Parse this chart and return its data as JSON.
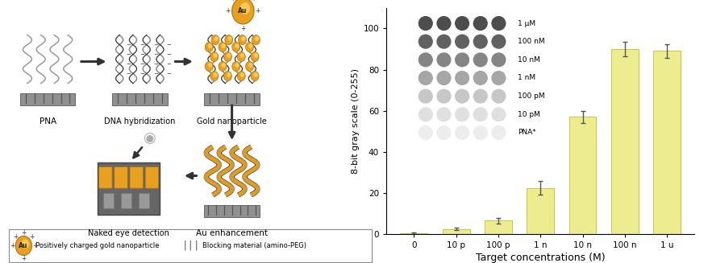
{
  "bar_values": [
    0.5,
    2.5,
    6.5,
    22.5,
    57,
    90,
    89
  ],
  "bar_errors": [
    0.3,
    0.5,
    1.5,
    3.5,
    3.0,
    3.5,
    3.5
  ],
  "bar_color": "#eded90",
  "bar_edgecolor": "#c8c840",
  "categories": [
    "0",
    "10 p",
    "100 p",
    "1 n",
    "10 n",
    "100 n",
    "1 u"
  ],
  "xlabel": "Target concentrations (M)",
  "ylabel": "8-bit gray scale (0-255)",
  "ylim": [
    0,
    110
  ],
  "yticks": [
    0,
    20,
    40,
    60,
    80,
    100
  ],
  "inset_labels": [
    "1 μM",
    "100 nM",
    "10 nM",
    "1 nM",
    "100 pM",
    "10 pM",
    "PNA*"
  ],
  "inset_dot_grays_rows": [
    [
      0.3,
      0.3,
      0.3,
      0.3,
      0.3
    ],
    [
      0.38,
      0.38,
      0.38,
      0.38,
      0.38
    ],
    [
      0.52,
      0.52,
      0.52,
      0.52,
      0.52
    ],
    [
      0.65,
      0.65,
      0.65,
      0.65,
      0.65
    ],
    [
      0.78,
      0.78,
      0.78,
      0.78,
      0.78
    ],
    [
      0.88,
      0.88,
      0.88,
      0.88,
      0.88
    ],
    [
      0.93,
      0.93,
      0.93,
      0.93,
      0.93
    ]
  ],
  "background_color": "#ffffff",
  "axis_fontsize": 8,
  "tick_fontsize": 7.5,
  "xlabel_fontsize": 9,
  "gold": "#E8A020",
  "gold_dark": "#B07010",
  "gold_light": "#FFD060",
  "platform_color": "#909090",
  "strand_color1": "#888888",
  "strand_color2": "#444444"
}
